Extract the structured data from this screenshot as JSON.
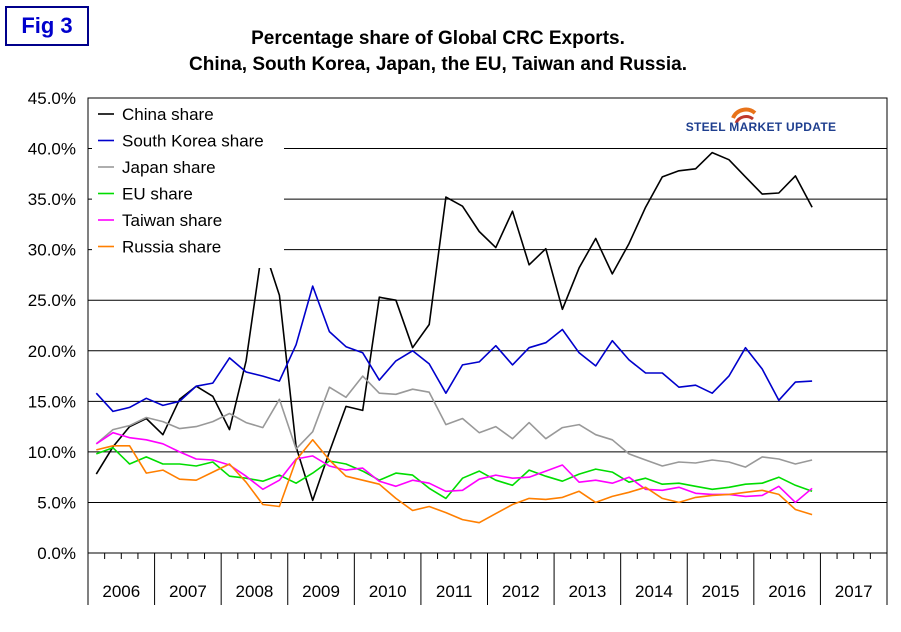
{
  "figure_label": "Fig 3",
  "logo": {
    "text": "STEEL MARKET UPDATE",
    "colors": [
      "#e8731a",
      "#c0392b",
      "#1f3f8f"
    ]
  },
  "chart_data": {
    "type": "line",
    "title": "Percentage share of Global CRC Exports.",
    "subtitle": "China, South Korea, Japan, the EU, Taiwan and Russia.",
    "xlabel": "",
    "ylabel": "",
    "ylim": [
      0,
      45
    ],
    "yticks": [
      "0.0%",
      "5.0%",
      "10.0%",
      "15.0%",
      "20.0%",
      "25.0%",
      "30.0%",
      "35.0%",
      "40.0%",
      "45.0%"
    ],
    "years": [
      "2006",
      "2007",
      "2008",
      "2009",
      "2010",
      "2011",
      "2012",
      "2013",
      "2014",
      "2015",
      "2016",
      "2017"
    ],
    "x_start": "2006 Q1",
    "x_step": "quarter",
    "grid": true,
    "legend_position": "top-left",
    "series": [
      {
        "name": "China share",
        "color": "#000000",
        "values": [
          7.8,
          10.5,
          12.5,
          13.3,
          11.7,
          15.2,
          16.5,
          15.5,
          12.2,
          19.0,
          30.5,
          25.5,
          10.5,
          5.2,
          10.0,
          14.5,
          14.1,
          25.3,
          25.0,
          20.3,
          22.6,
          35.2,
          34.3,
          31.8,
          30.2,
          33.8,
          28.5,
          30.1,
          24.1,
          28.2,
          31.1,
          27.6,
          30.6,
          34.2,
          37.2,
          37.8,
          38.0,
          39.6,
          38.9,
          37.2,
          35.5,
          35.6,
          37.3,
          34.2
        ]
      },
      {
        "name": "South Korea share",
        "color": "#0000cc",
        "values": [
          15.8,
          14.0,
          14.4,
          15.3,
          14.6,
          15.0,
          16.5,
          16.8,
          19.3,
          17.9,
          17.5,
          17.0,
          20.6,
          26.4,
          21.9,
          20.4,
          19.8,
          17.1,
          19.0,
          20.0,
          18.7,
          15.8,
          18.6,
          18.9,
          20.5,
          18.6,
          20.3,
          20.8,
          22.1,
          19.8,
          18.5,
          21.0,
          19.1,
          17.8,
          17.8,
          16.4,
          16.6,
          15.8,
          17.5,
          20.3,
          18.2,
          15.1,
          16.9,
          17.0
        ]
      },
      {
        "name": "Japan share",
        "color": "#999999",
        "values": [
          10.8,
          12.2,
          12.6,
          13.4,
          13.0,
          12.3,
          12.5,
          13.0,
          13.8,
          12.9,
          12.4,
          15.2,
          10.3,
          12.0,
          16.4,
          15.4,
          17.5,
          15.8,
          15.7,
          16.2,
          15.9,
          12.7,
          13.3,
          11.9,
          12.5,
          11.3,
          12.9,
          11.3,
          12.4,
          12.7,
          11.7,
          11.2,
          9.8,
          9.2,
          8.6,
          9.0,
          8.9,
          9.2,
          9.0,
          8.5,
          9.5,
          9.3,
          8.8,
          9.2
        ]
      },
      {
        "name": "EU share",
        "color": "#00dd00",
        "values": [
          9.8,
          10.4,
          8.8,
          9.5,
          8.8,
          8.8,
          8.6,
          9.0,
          7.6,
          7.4,
          7.1,
          7.7,
          6.9,
          7.9,
          9.1,
          8.8,
          8.1,
          7.2,
          7.9,
          7.7,
          6.4,
          5.4,
          7.4,
          8.1,
          7.2,
          6.7,
          8.2,
          7.6,
          7.1,
          7.8,
          8.3,
          8.0,
          7.0,
          7.4,
          6.8,
          6.9,
          6.6,
          6.3,
          6.5,
          6.8,
          6.9,
          7.5,
          6.7,
          6.1
        ]
      },
      {
        "name": "Taiwan share",
        "color": "#ff00ff",
        "values": [
          10.8,
          11.9,
          11.4,
          11.2,
          10.8,
          10.0,
          9.3,
          9.2,
          8.7,
          7.6,
          6.3,
          7.2,
          9.3,
          9.6,
          8.6,
          8.2,
          8.4,
          7.1,
          6.6,
          7.2,
          6.9,
          6.1,
          6.2,
          7.3,
          7.7,
          7.4,
          7.5,
          8.1,
          8.7,
          7.0,
          7.2,
          6.9,
          7.5,
          6.3,
          6.2,
          6.5,
          5.9,
          5.8,
          5.8,
          5.6,
          5.7,
          6.6,
          5.0,
          6.4
        ]
      },
      {
        "name": "Russia share",
        "color": "#ff7f00",
        "values": [
          10.2,
          10.6,
          10.6,
          7.9,
          8.2,
          7.3,
          7.2,
          8.0,
          8.8,
          7.0,
          4.8,
          4.6,
          9.2,
          11.2,
          9.2,
          7.6,
          7.2,
          6.8,
          5.4,
          4.2,
          4.6,
          4.0,
          3.3,
          3.0,
          3.9,
          4.8,
          5.4,
          5.3,
          5.5,
          6.1,
          5.0,
          5.6,
          6.0,
          6.5,
          5.4,
          5.0,
          5.5,
          5.7,
          5.8,
          6.0,
          6.2,
          5.8,
          4.3,
          3.8
        ]
      }
    ]
  }
}
